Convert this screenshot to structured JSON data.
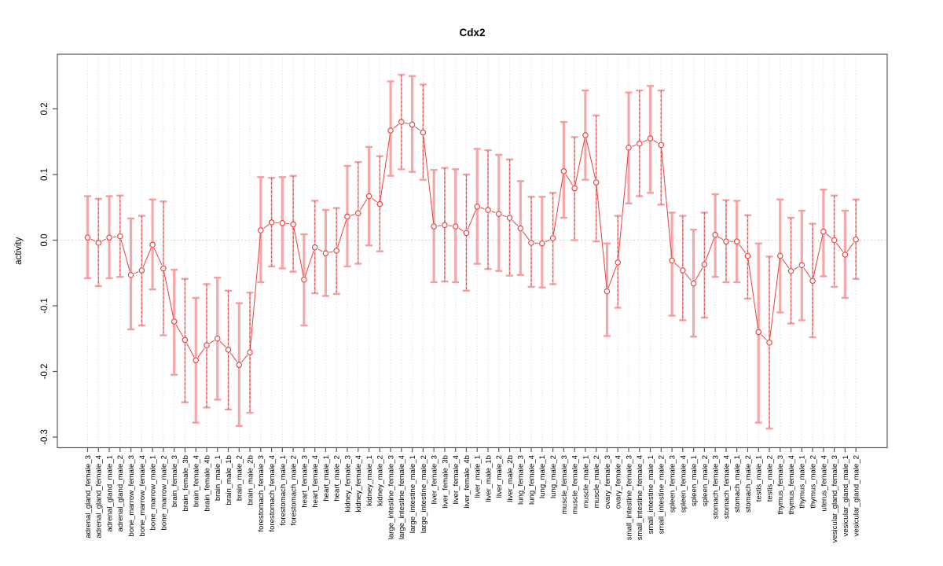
{
  "title": "Cdx2",
  "y_axis": {
    "label": "activity",
    "tick_labels": [
      "0.2",
      "0.1",
      "0.0",
      "-0.1",
      "-0.2",
      "-0.3"
    ],
    "tick_values": [
      0.2,
      0.1,
      0.0,
      -0.1,
      -0.2,
      -0.3
    ]
  },
  "colors": {
    "point": "#e8413c",
    "line": "#e8413c",
    "error_bar": "#f59a9a",
    "error_stem": "#dd4b4b",
    "gridline": "#d9d9d9",
    "zero_line": "#c8c8c8",
    "box": "#555555",
    "text": "#000000"
  },
  "chart_data": {
    "type": "line",
    "title": "Cdx2",
    "xlabel": "",
    "ylabel": "activity",
    "ylim": [
      -0.316,
      0.283
    ],
    "grid": "vertical dotted line at every category; horizontal dotted line at 0.0 only",
    "legend": "none",
    "marker": "open-circle",
    "error_bars": true,
    "categories": [
      "adrenal_gland_female_3",
      "adrenal_gland_female_4",
      "adrenal_gland_male_1",
      "adrenal_gland_male_2",
      "bone_marrow_female_3",
      "bone_marrow_female_4",
      "bone_marrow_male_1",
      "bone_marrow_male_2",
      "brain_female_3",
      "brain_female_3b",
      "brain_female_4",
      "brain_female_4b",
      "brain_male_1",
      "brain_male_1b",
      "brain_male_2",
      "brain_male_2b",
      "forestomach_female_3",
      "forestomach_female_4",
      "forestomach_male_1",
      "forestomach_male_2",
      "heart_female_3",
      "heart_female_4",
      "heart_male_1",
      "heart_male_2",
      "kidney_female_3",
      "kidney_female_4",
      "kidney_male_1",
      "kidney_male_2",
      "large_intestine_female_3",
      "large_intestine_female_4",
      "large_intestine_male_1",
      "large_intestine_male_2",
      "liver_female_3",
      "liver_female_3b",
      "liver_female_4",
      "liver_female_4b",
      "liver_male_1",
      "liver_male_1b",
      "liver_male_2",
      "liver_male_2b",
      "lung_female_3",
      "lung_female_4",
      "lung_male_1",
      "lung_male_2",
      "muscle_female_3",
      "muscle_female_4",
      "muscle_male_1",
      "muscle_male_2",
      "ovary_female_3",
      "ovary_female_4",
      "small_intestine_female_3",
      "small_intestine_female_4",
      "small_intestine_male_1",
      "small_intestine_male_2",
      "spleen_female_3",
      "spleen_female_4",
      "spleen_male_1",
      "spleen_male_2",
      "stomach_female_3",
      "stomach_female_4",
      "stomach_male_1",
      "stomach_male_2",
      "testis_male_1",
      "testis_male_2",
      "thymus_female_3",
      "thymus_female_4",
      "thymus_male_1",
      "thymus_male_2",
      "uterus_female_4",
      "vesicular_gland_female_3",
      "vesicular_gland_male_1",
      "vesicular_gland_male_2"
    ],
    "values": [
      0.004,
      -0.004,
      0.004,
      0.006,
      -0.053,
      -0.046,
      -0.007,
      -0.043,
      -0.124,
      -0.152,
      -0.183,
      -0.16,
      -0.15,
      -0.167,
      -0.19,
      -0.171,
      0.015,
      0.027,
      0.026,
      0.024,
      -0.06,
      -0.011,
      -0.02,
      -0.016,
      0.036,
      0.041,
      0.067,
      0.055,
      0.167,
      0.18,
      0.176,
      0.164,
      0.021,
      0.023,
      0.021,
      0.011,
      0.051,
      0.046,
      0.04,
      0.034,
      0.018,
      -0.004,
      -0.005,
      0.003,
      0.105,
      0.079,
      0.16,
      0.088,
      -0.078,
      -0.034,
      0.141,
      0.147,
      0.155,
      0.145,
      -0.031,
      -0.046,
      -0.066,
      -0.037,
      0.008,
      -0.002,
      -0.002,
      -0.024,
      -0.14,
      -0.156,
      -0.024,
      -0.047,
      -0.038,
      -0.062,
      0.013,
      0.0,
      -0.022,
      0.001
    ],
    "err_low": [
      -0.058,
      -0.07,
      -0.058,
      -0.056,
      -0.136,
      -0.13,
      -0.075,
      -0.145,
      -0.205,
      -0.247,
      -0.278,
      -0.255,
      -0.243,
      -0.258,
      -0.283,
      -0.263,
      -0.064,
      -0.04,
      -0.043,
      -0.048,
      -0.13,
      -0.081,
      -0.085,
      -0.082,
      -0.04,
      -0.036,
      -0.008,
      -0.017,
      0.098,
      0.108,
      0.104,
      0.092,
      -0.064,
      -0.063,
      -0.064,
      -0.077,
      -0.036,
      -0.044,
      -0.047,
      -0.054,
      -0.053,
      -0.071,
      -0.072,
      -0.067,
      0.034,
      0.0,
      0.092,
      -0.002,
      -0.146,
      -0.103,
      0.056,
      0.067,
      0.072,
      0.054,
      -0.115,
      -0.122,
      -0.147,
      -0.118,
      -0.056,
      -0.064,
      -0.064,
      -0.089,
      -0.278,
      -0.287,
      -0.11,
      -0.127,
      -0.122,
      -0.148,
      -0.055,
      -0.071,
      -0.088,
      -0.059
    ],
    "err_high": [
      0.067,
      0.063,
      0.067,
      0.068,
      0.033,
      0.037,
      0.062,
      0.059,
      -0.045,
      -0.059,
      -0.088,
      -0.067,
      -0.057,
      -0.077,
      -0.096,
      -0.08,
      0.096,
      0.095,
      0.096,
      0.098,
      0.009,
      0.06,
      0.046,
      0.049,
      0.113,
      0.119,
      0.142,
      0.128,
      0.242,
      0.252,
      0.25,
      0.237,
      0.107,
      0.11,
      0.108,
      0.1,
      0.139,
      0.137,
      0.13,
      0.123,
      0.09,
      0.066,
      0.066,
      0.072,
      0.18,
      0.157,
      0.228,
      0.19,
      -0.005,
      0.037,
      0.225,
      0.228,
      0.235,
      0.228,
      0.042,
      0.037,
      0.016,
      0.042,
      0.07,
      0.061,
      0.06,
      0.038,
      -0.005,
      -0.025,
      0.062,
      0.034,
      0.045,
      0.025,
      0.077,
      0.068,
      0.045,
      0.062
    ]
  }
}
